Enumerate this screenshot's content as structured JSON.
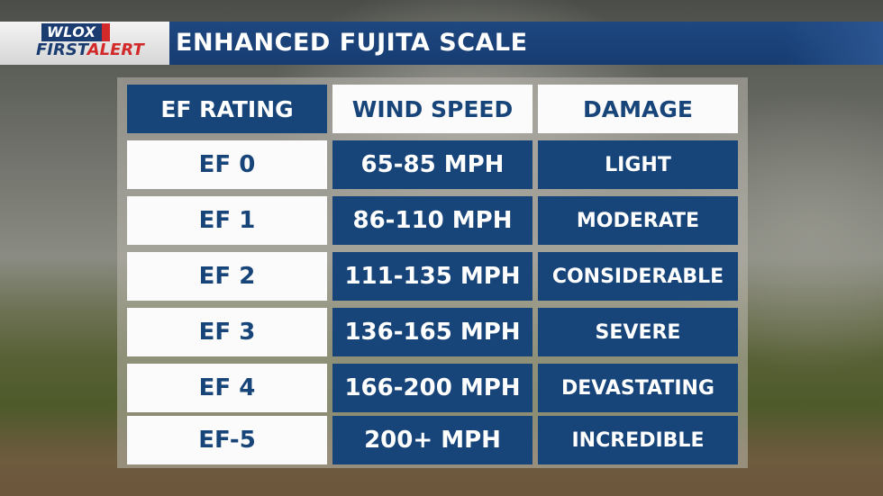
{
  "branding": {
    "logo_top": "WLOX",
    "logo_first": "FIRST",
    "logo_alert": "ALERT"
  },
  "header": {
    "title": "ENHANCED FUJITA SCALE"
  },
  "table": {
    "columns": [
      "EF RATING",
      "WIND SPEED",
      "DAMAGE"
    ],
    "rows": [
      {
        "rating": "EF 0",
        "wind_speed": "65-85 MPH",
        "damage": "LIGHT"
      },
      {
        "rating": "EF 1",
        "wind_speed": "86-110 MPH",
        "damage": "MODERATE"
      },
      {
        "rating": "EF 2",
        "wind_speed": "111-135 MPH",
        "damage": "CONSIDERABLE"
      },
      {
        "rating": "EF 3",
        "wind_speed": "136-165 MPH",
        "damage": "SEVERE"
      },
      {
        "rating": "EF 4",
        "wind_speed": "166-200 MPH",
        "damage": "DEVASTATING"
      },
      {
        "rating": "EF-5",
        "wind_speed": "200+ MPH",
        "damage": "INCREDIBLE"
      }
    ]
  },
  "colors": {
    "navy": "#174479",
    "white": "#fbfbfb",
    "alert_red": "#d22a2a"
  }
}
